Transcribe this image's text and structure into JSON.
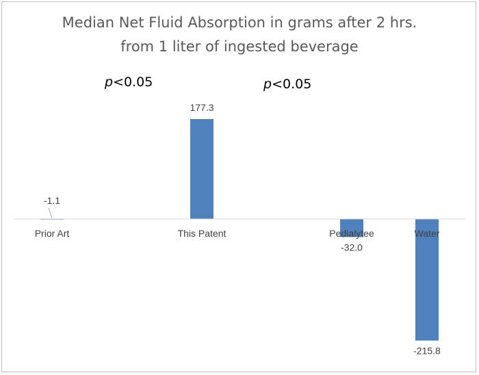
{
  "chart_data": {
    "type": "bar",
    "title_line1": "Median Net Fluid Absorption in grams after 2 hrs.",
    "title_line2": "from 1 liter of ingested beverage",
    "categories": [
      "Prior Art",
      "This Patent",
      "Pedialytee",
      "Water"
    ],
    "values": [
      -1.1,
      177.3,
      -32.0,
      -215.8
    ],
    "data_labels": [
      "-1.1",
      "177.3",
      "-32.0",
      "-215.8"
    ],
    "bar_color": "#4f81bd",
    "ylim": [
      -215.8,
      177.3
    ],
    "grid": false,
    "annotations": [
      {
        "italic": "p",
        "rest": "<0.05"
      },
      {
        "italic": "p",
        "rest": "<0.05"
      }
    ]
  }
}
